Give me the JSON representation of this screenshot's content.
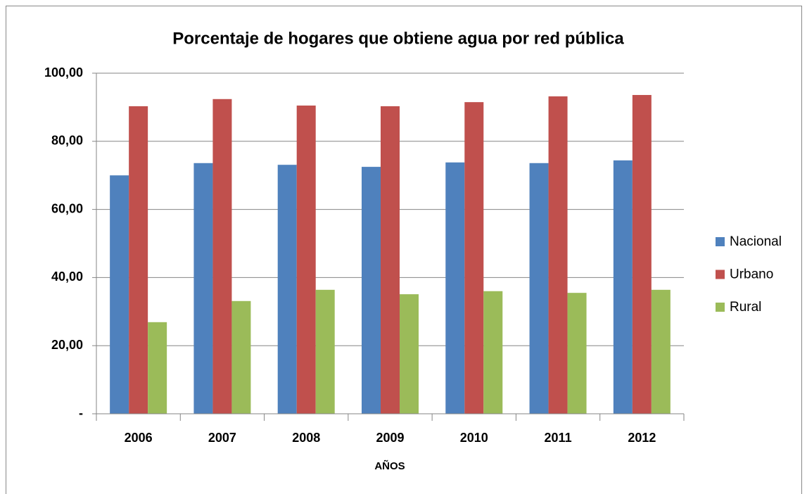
{
  "chart_data": {
    "type": "bar",
    "title": "Porcentaje de hogares que obtiene agua por red pública",
    "x_label": "AÑOS",
    "categories": [
      "2006",
      "2007",
      "2008",
      "2009",
      "2010",
      "2011",
      "2012"
    ],
    "series": [
      {
        "name": "Nacional",
        "color": "#4f81bd",
        "values": [
          70.0,
          73.6,
          73.1,
          72.5,
          73.8,
          73.6,
          74.4
        ]
      },
      {
        "name": "Urbano",
        "color": "#c0504d",
        "values": [
          90.3,
          92.4,
          90.5,
          90.3,
          91.5,
          93.2,
          93.6
        ]
      },
      {
        "name": "Rural",
        "color": "#9bbb59",
        "values": [
          26.9,
          33.1,
          36.4,
          35.1,
          36.0,
          35.5,
          36.4
        ]
      }
    ],
    "ylim": [
      0,
      100
    ],
    "yticks": [
      {
        "value": 0,
        "label": "-"
      },
      {
        "value": 20,
        "label": "20,00"
      },
      {
        "value": 40,
        "label": "40,00"
      },
      {
        "value": 60,
        "label": "60,00"
      },
      {
        "value": 80,
        "label": "80,00"
      },
      {
        "value": 100,
        "label": "100,00"
      }
    ],
    "grid": true,
    "legend": "right"
  }
}
